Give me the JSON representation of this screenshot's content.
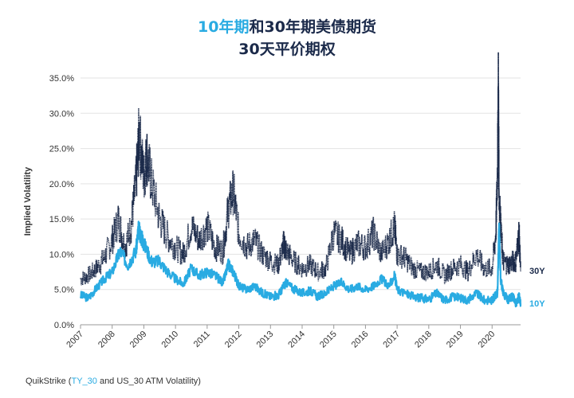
{
  "title": {
    "line1_accent": "10年期",
    "line1_rest": "和30年期美债期货",
    "line2": "30天平价期权"
  },
  "source": {
    "prefix": "QuikStrike (",
    "link": "TY_30",
    "suffix": " and US_30 ATM Volatility)"
  },
  "colors": {
    "ten_year": "#29abe2",
    "thirty_year": "#1b2a4a",
    "grid": "#e3e3e3",
    "axis_text": "#333333"
  },
  "chart_data": {
    "type": "line",
    "title": "10年期和30年期美债期货 30天平价期权",
    "xlabel": "",
    "ylabel": "Implied Volatility",
    "ylim": [
      0,
      35
    ],
    "y_ticks": [
      "0.0%",
      "5.0%",
      "10.0%",
      "15.0%",
      "20.0%",
      "25.0%",
      "30.0%",
      "35.0%"
    ],
    "x_ticks": [
      "2007",
      "2008",
      "2009",
      "2010",
      "2011",
      "2012",
      "2013",
      "2014",
      "2015",
      "2016",
      "2017",
      "2018",
      "2019",
      "2020"
    ],
    "xlim": [
      2007.0,
      2020.9
    ],
    "grid": "horizontal",
    "legend": "inline labels at right end of lines",
    "series": [
      {
        "name": "10Y",
        "style": "solid",
        "x": [
          2007.0,
          2007.25,
          2007.5,
          2007.75,
          2008.0,
          2008.25,
          2008.5,
          2008.75,
          2008.83,
          2008.92,
          2009.0,
          2009.25,
          2009.5,
          2009.75,
          2010.0,
          2010.25,
          2010.5,
          2010.75,
          2011.0,
          2011.25,
          2011.5,
          2011.67,
          2011.83,
          2012.0,
          2012.25,
          2012.5,
          2012.75,
          2013.0,
          2013.25,
          2013.42,
          2013.5,
          2013.75,
          2014.0,
          2014.25,
          2014.5,
          2014.75,
          2015.0,
          2015.25,
          2015.5,
          2015.75,
          2016.0,
          2016.25,
          2016.5,
          2016.75,
          2016.92,
          2017.0,
          2017.25,
          2017.5,
          2017.75,
          2018.0,
          2018.25,
          2018.5,
          2018.75,
          2019.0,
          2019.25,
          2019.5,
          2019.75,
          2020.0,
          2020.17,
          2020.22,
          2020.27,
          2020.35,
          2020.5,
          2020.65,
          2020.75,
          2020.85,
          2020.9
        ],
        "y": [
          4.2,
          3.8,
          5.2,
          6.5,
          7.5,
          10.5,
          8.5,
          10.5,
          13.5,
          12.5,
          11.5,
          9.0,
          9.0,
          7.5,
          6.5,
          5.8,
          8.0,
          7.0,
          7.5,
          7.0,
          6.0,
          8.5,
          7.5,
          5.5,
          5.0,
          5.5,
          4.5,
          4.0,
          4.2,
          5.5,
          6.0,
          5.0,
          4.5,
          4.8,
          4.0,
          4.5,
          5.5,
          6.0,
          5.0,
          5.5,
          5.0,
          5.5,
          6.5,
          5.5,
          7.0,
          5.0,
          4.5,
          4.0,
          3.8,
          3.6,
          4.5,
          3.5,
          4.0,
          3.8,
          3.5,
          4.5,
          3.5,
          3.5,
          4.5,
          14.0,
          6.5,
          4.5,
          3.5,
          4.0,
          3.0,
          4.0,
          3.0
        ]
      },
      {
        "name": "30Y",
        "style": "dotted",
        "x": [
          2007.0,
          2007.25,
          2007.5,
          2007.75,
          2008.0,
          2008.2,
          2008.4,
          2008.6,
          2008.75,
          2008.85,
          2009.0,
          2009.1,
          2009.25,
          2009.5,
          2009.75,
          2010.0,
          2010.25,
          2010.5,
          2010.75,
          2011.0,
          2011.25,
          2011.5,
          2011.67,
          2011.83,
          2012.0,
          2012.25,
          2012.5,
          2012.75,
          2013.0,
          2013.25,
          2013.42,
          2013.5,
          2013.75,
          2014.0,
          2014.25,
          2014.5,
          2014.75,
          2015.0,
          2015.25,
          2015.5,
          2015.75,
          2016.0,
          2016.25,
          2016.5,
          2016.75,
          2016.92,
          2017.0,
          2017.25,
          2017.5,
          2017.75,
          2018.0,
          2018.25,
          2018.5,
          2018.75,
          2019.0,
          2019.25,
          2019.5,
          2019.75,
          2020.0,
          2020.12,
          2020.17,
          2020.2,
          2020.22,
          2020.27,
          2020.35,
          2020.5,
          2020.65,
          2020.75,
          2020.85,
          2020.9
        ],
        "y": [
          6.5,
          7.0,
          8.0,
          9.5,
          12.0,
          15.0,
          11.0,
          14.0,
          20.0,
          27.0,
          21.0,
          24.0,
          20.0,
          15.0,
          12.5,
          11.0,
          10.0,
          14.0,
          12.0,
          14.0,
          11.0,
          10.5,
          16.5,
          19.0,
          13.0,
          11.0,
          12.0,
          10.0,
          9.0,
          8.5,
          11.5,
          10.5,
          9.0,
          8.0,
          8.5,
          7.5,
          8.0,
          13.0,
          12.0,
          10.0,
          11.5,
          11.0,
          13.0,
          10.0,
          12.0,
          14.0,
          10.0,
          9.5,
          8.0,
          7.5,
          7.5,
          8.5,
          7.0,
          8.0,
          8.5,
          7.5,
          10.0,
          8.0,
          8.0,
          13.0,
          22.0,
          34.0,
          18.0,
          14.0,
          9.0,
          8.5,
          9.0,
          9.0,
          13.0,
          7.5
        ]
      }
    ],
    "end_labels": [
      "30Y",
      "10Y"
    ]
  }
}
